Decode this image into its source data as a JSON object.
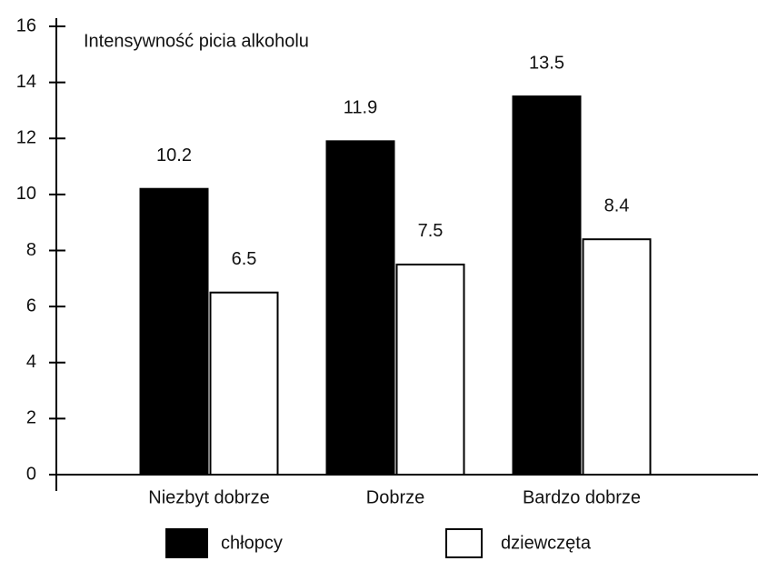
{
  "chart_data": {
    "type": "bar",
    "ylabel": "Intensywność picia alkoholu",
    "categories": [
      "Niezbyt dobrze",
      "Dobrze",
      "Bardzo dobrze"
    ],
    "series": [
      {
        "name": "chłopcy",
        "color": "#000000",
        "values": [
          10.2,
          11.9,
          13.5
        ]
      },
      {
        "name": "dziewczęta",
        "color": "#ffffff",
        "values": [
          6.5,
          7.5,
          8.4
        ]
      }
    ],
    "ylim": [
      0,
      16
    ],
    "yticks": [
      0,
      2,
      4,
      6,
      8,
      10,
      12,
      14,
      16
    ]
  }
}
